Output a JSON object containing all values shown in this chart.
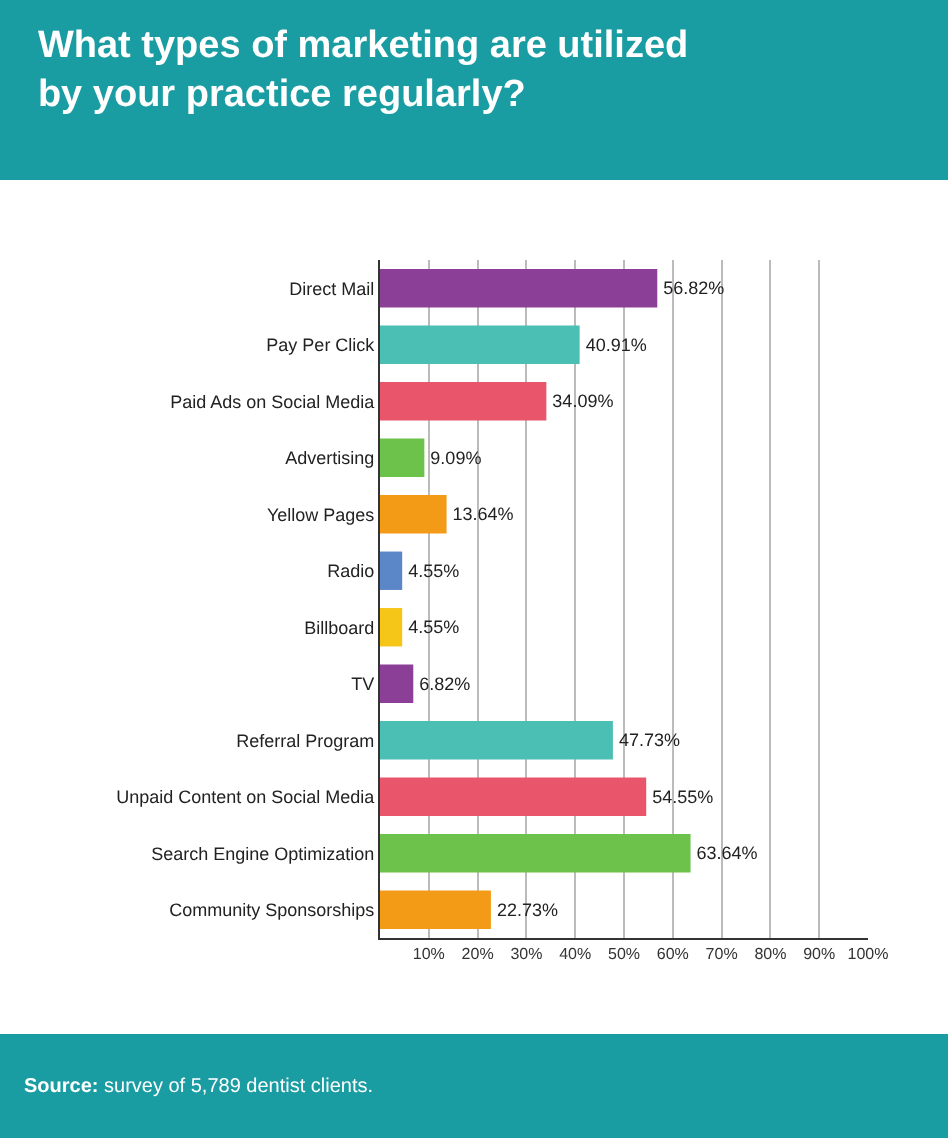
{
  "chart_data": {
    "type": "bar",
    "orientation": "horizontal",
    "title": "What types of marketing are utilized by your practice regularly?",
    "categories": [
      "Direct Mail",
      "Pay Per Click",
      "Paid Ads on Social Media",
      "Advertising",
      "Yellow Pages",
      "Radio",
      "Billboard",
      "TV",
      "Referral Program",
      "Unpaid Content on Social Media",
      "Search Engine Optimization",
      "Community Sponsorships"
    ],
    "values": [
      56.82,
      40.91,
      34.09,
      9.09,
      13.64,
      4.55,
      4.55,
      6.82,
      47.73,
      54.55,
      63.64,
      22.73
    ],
    "value_labels": [
      "56.82%",
      "40.91%",
      "34.09%",
      "9.09%",
      "13.64%",
      "4.55%",
      "4.55%",
      "6.82%",
      "47.73%",
      "54.55%",
      "63.64%",
      "22.73%"
    ],
    "colors": [
      "#8b3f96",
      "#4cbfb4",
      "#e9566c",
      "#6cc24a",
      "#f39b17",
      "#5b87c9",
      "#f5c518",
      "#8b3f96",
      "#4cbfb4",
      "#e9566c",
      "#6cc24a",
      "#f39b17"
    ],
    "xlim": [
      0,
      100
    ],
    "xticks": [
      {
        "value": 10,
        "label": "10%"
      },
      {
        "value": 20,
        "label": "20%"
      },
      {
        "value": 30,
        "label": "30%"
      },
      {
        "value": 40,
        "label": "40%"
      },
      {
        "value": 50,
        "label": "50%"
      },
      {
        "value": 60,
        "label": "60%"
      },
      {
        "value": 70,
        "label": "70%"
      },
      {
        "value": 80,
        "label": "80%"
      },
      {
        "value": 90,
        "label": "90%"
      },
      {
        "value": 100,
        "label": "100%"
      }
    ],
    "grid": "x",
    "annotations": [
      "Source: survey of 5,789 dentist clients."
    ]
  }
}
